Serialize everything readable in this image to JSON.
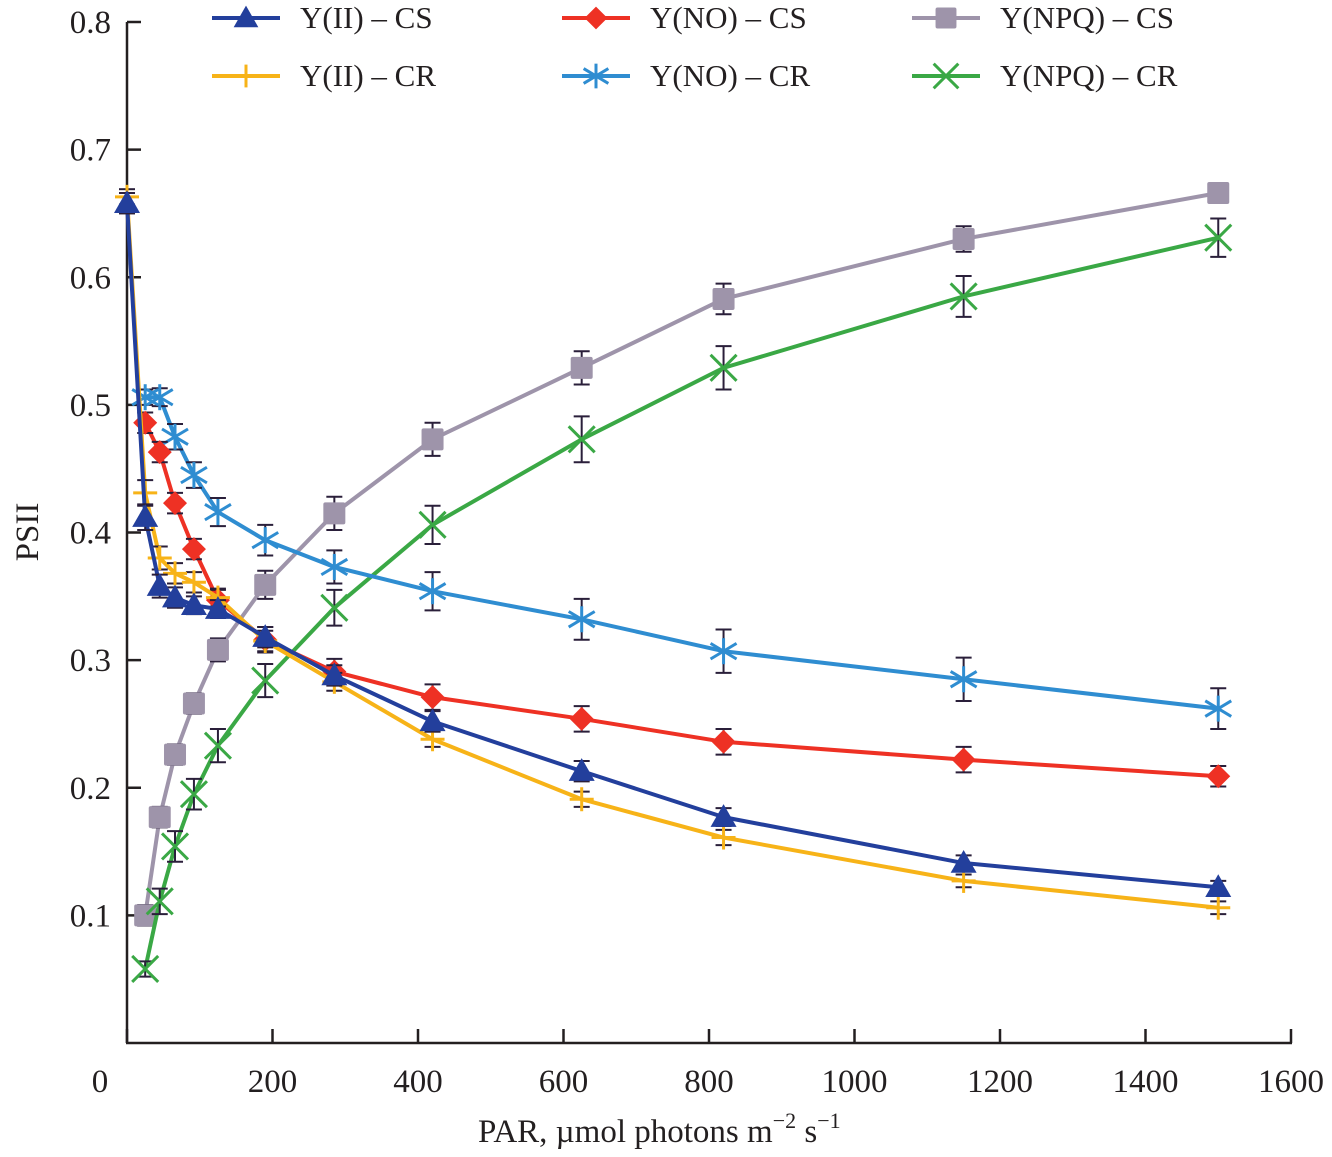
{
  "chart_data": {
    "type": "line",
    "title": "",
    "xlabel": "PAR, µmol photons m",
    "xlabel_sup1": "−2",
    "xlabel_mid": " s",
    "xlabel_sup2": "−1",
    "ylabel": "PSII",
    "xlim": [
      0,
      1600
    ],
    "ylim": [
      0,
      0.8
    ],
    "x_ticks": [
      0,
      200,
      400,
      600,
      800,
      1000,
      1200,
      1400,
      1600
    ],
    "x_tick_labels": [
      "0",
      "200",
      "400",
      "600",
      "800",
      "1000",
      "1200",
      "1400",
      "1600"
    ],
    "y_ticks": [
      0.1,
      0.2,
      0.3,
      0.4,
      0.5,
      0.6,
      0.7,
      0.8
    ],
    "y_tick_labels": [
      "0.1",
      "0.2",
      "0.3",
      "0.4",
      "0.5",
      "0.6",
      "0.7",
      "0.8"
    ],
    "grid": false,
    "legend_position": "top",
    "series": [
      {
        "name": "Y(II) – CS",
        "color": "#233f9c",
        "marker": "triangle",
        "x": [
          0,
          25,
          45,
          66,
          92,
          125,
          190,
          285,
          420,
          625,
          820,
          1150,
          1500
        ],
        "values": [
          0.658,
          0.412,
          0.358,
          0.349,
          0.343,
          0.34,
          0.318,
          0.288,
          0.252,
          0.213,
          0.177,
          0.141,
          0.122
        ],
        "errors": [
          0.008,
          0.01,
          0.009,
          0.008,
          0.007,
          0.007,
          0.008,
          0.008,
          0.008,
          0.008,
          0.007,
          0.006,
          0.005
        ]
      },
      {
        "name": "Y(II) – CR",
        "color": "#f7b318",
        "marker": "plus",
        "x": [
          0,
          25,
          45,
          66,
          92,
          125,
          190,
          285,
          420,
          625,
          820,
          1150,
          1500
        ],
        "values": [
          0.663,
          0.431,
          0.38,
          0.368,
          0.361,
          0.349,
          0.315,
          0.283,
          0.238,
          0.191,
          0.161,
          0.127,
          0.106
        ],
        "errors": [
          0.006,
          0.01,
          0.009,
          0.008,
          0.008,
          0.007,
          0.008,
          0.007,
          0.006,
          0.006,
          0.006,
          0.005,
          0.005
        ]
      },
      {
        "name": "Y(NO) – CS",
        "color": "#ee3124",
        "marker": "diamond",
        "x": [
          25,
          45,
          66,
          92,
          125,
          190,
          285,
          420,
          625,
          820,
          1150,
          1500
        ],
        "values": [
          0.486,
          0.463,
          0.423,
          0.387,
          0.347,
          0.316,
          0.291,
          0.271,
          0.254,
          0.236,
          0.222,
          0.209
        ],
        "errors": [
          0.008,
          0.008,
          0.008,
          0.008,
          0.008,
          0.01,
          0.01,
          0.01,
          0.01,
          0.01,
          0.01,
          0.008
        ]
      },
      {
        "name": "Y(NO) – CR",
        "color": "#2f8dd1",
        "marker": "asterisk",
        "x": [
          25,
          45,
          66,
          92,
          125,
          190,
          285,
          420,
          625,
          820,
          1150,
          1500
        ],
        "values": [
          0.506,
          0.506,
          0.475,
          0.445,
          0.416,
          0.394,
          0.373,
          0.354,
          0.332,
          0.307,
          0.285,
          0.262
        ],
        "errors": [
          0.006,
          0.007,
          0.01,
          0.01,
          0.011,
          0.012,
          0.013,
          0.015,
          0.016,
          0.017,
          0.017,
          0.016
        ]
      },
      {
        "name": "Y(NPQ) – CS",
        "color": "#9e94aa",
        "marker": "square",
        "x": [
          25,
          45,
          66,
          92,
          125,
          190,
          285,
          420,
          625,
          820,
          1150,
          1500
        ],
        "values": [
          0.1,
          0.177,
          0.226,
          0.266,
          0.308,
          0.359,
          0.415,
          0.473,
          0.529,
          0.583,
          0.63,
          0.666
        ],
        "errors": [
          0.008,
          0.008,
          0.008,
          0.008,
          0.009,
          0.011,
          0.013,
          0.013,
          0.013,
          0.012,
          0.01,
          0.006
        ]
      },
      {
        "name": "Y(NPQ) – CR",
        "color": "#3aa845",
        "marker": "x",
        "x": [
          25,
          45,
          66,
          92,
          125,
          190,
          285,
          420,
          625,
          820,
          1150,
          1500
        ],
        "values": [
          0.058,
          0.111,
          0.154,
          0.195,
          0.233,
          0.284,
          0.341,
          0.406,
          0.473,
          0.529,
          0.585,
          0.631
        ],
        "errors": [
          0.006,
          0.01,
          0.012,
          0.012,
          0.013,
          0.013,
          0.014,
          0.015,
          0.018,
          0.017,
          0.016,
          0.015
        ]
      }
    ]
  }
}
